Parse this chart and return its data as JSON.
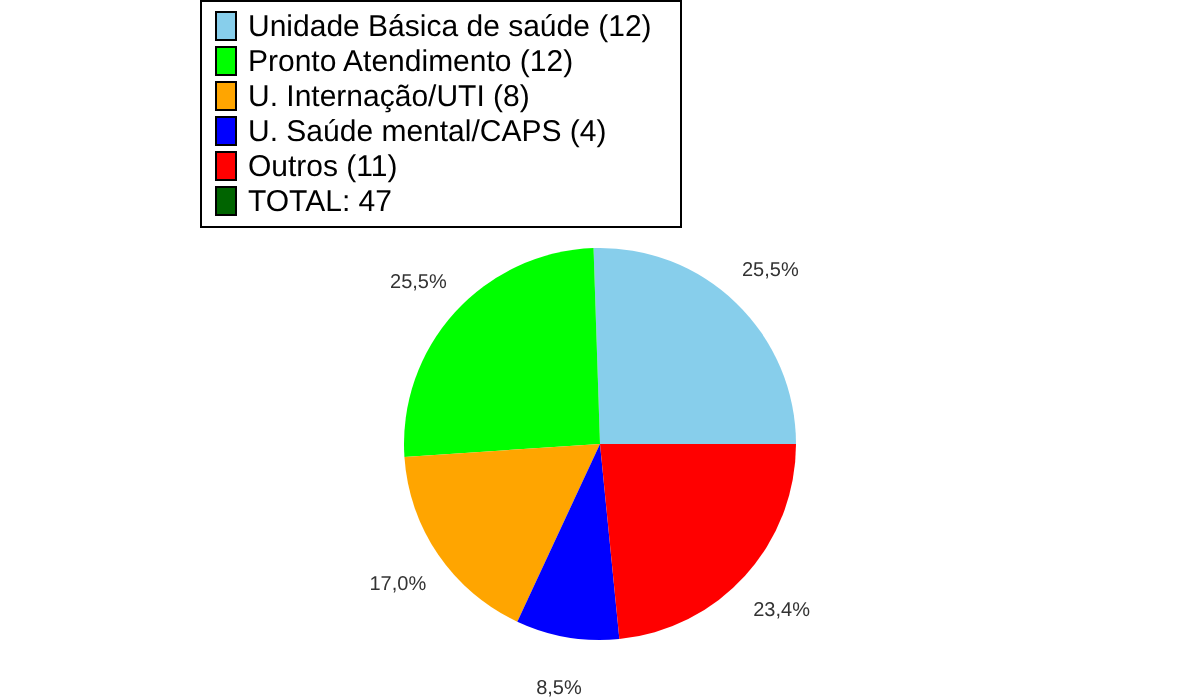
{
  "chart_data": {
    "type": "pie",
    "categories": [
      "Unidade Básica de saúde (12)",
      "Pronto Atendimento (12)",
      "U. Internação/UTI (8)",
      "U. Saúde mental/CAPS (4)",
      "Outros (11)"
    ],
    "values": [
      25.5,
      25.5,
      17.0,
      8.5,
      23.4
    ],
    "colors": [
      "#87ceeb",
      "#00ff00",
      "#ffa500",
      "#0000ff",
      "#ff0000"
    ],
    "value_labels": [
      "25,5%",
      "25,5%",
      "17,0%",
      "8,5%",
      "23,4%"
    ],
    "legend": "top left",
    "annotations": [
      "TOTAL: 47"
    ]
  }
}
